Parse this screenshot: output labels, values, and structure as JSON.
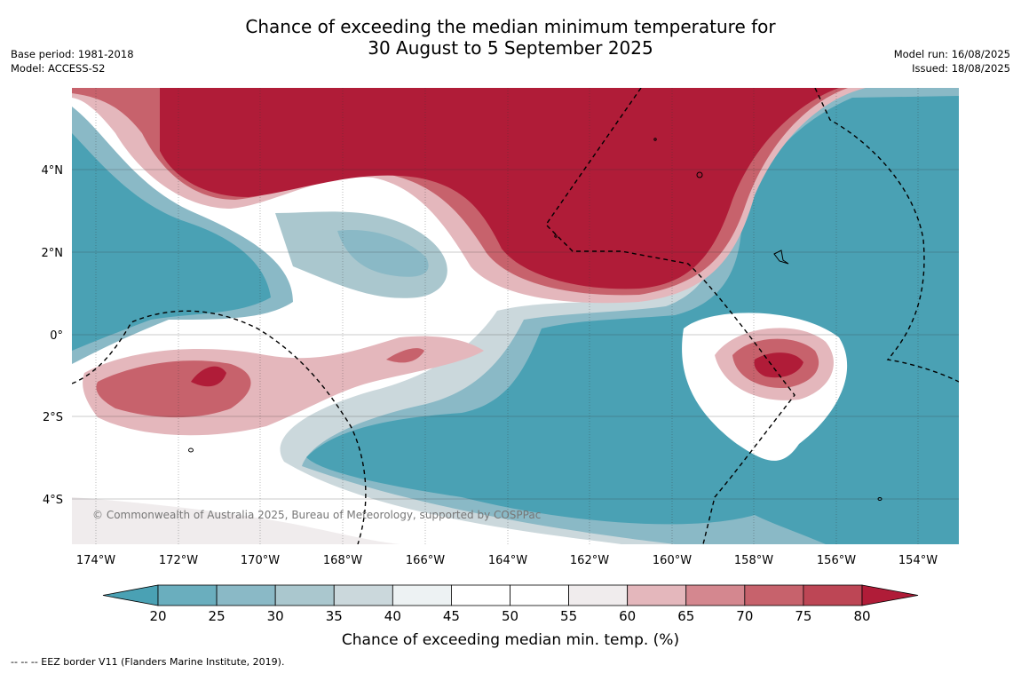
{
  "title_line1": "Chance of exceeding the median minimum temperature for",
  "title_line2": "30 August to 5 September 2025",
  "base_period": "Base period: 1981-2018",
  "model": "Model: ACCESS-S2",
  "model_run": "Model run: 16/08/2025",
  "issued": "Issued: 18/08/2025",
  "copyright": "© Commonwealth of Australia 2025, Bureau of Meteorology, supported by COSPPac",
  "lon_labels": [
    "174°W",
    "172°W",
    "170°W",
    "168°W",
    "166°W",
    "164°W",
    "162°W",
    "160°W",
    "158°W",
    "156°W",
    "154°W"
  ],
  "lat_labels": [
    "4°N",
    "2°N",
    "0°",
    "2°S",
    "4°S"
  ],
  "colorbar": {
    "ticks": [
      "20",
      "25",
      "30",
      "35",
      "40",
      "45",
      "50",
      "55",
      "60",
      "65",
      "70",
      "75",
      "80"
    ],
    "label": "Chance of exceeding median min. temp. (%)",
    "colors": [
      "#4aa1b4",
      "#6aaebe",
      "#8ab9c6",
      "#aac7ce",
      "#cbd8dc",
      "#edf2f3",
      "#ffffff",
      "#ffffff",
      "#f0eced",
      "#e4b7bc",
      "#d4878f",
      "#c7626c",
      "#bd4655",
      "#b01c38"
    ]
  },
  "footer": "--  --  -- EEZ border V11 (Flanders Marine Institute, 2019)."
}
